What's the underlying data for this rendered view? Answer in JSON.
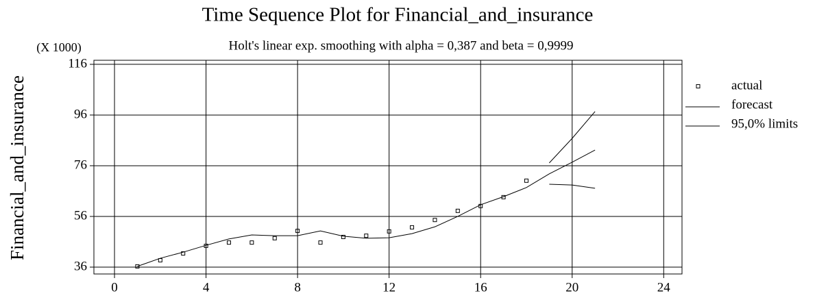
{
  "chart_data": {
    "type": "line",
    "title": "Time Sequence Plot for Financial_and_insurance",
    "subtitle": "Holt's linear exp. smoothing with alpha = 0,387 and beta = 0,9999",
    "y_label": "Financial_and_insurance",
    "y_multiplier": "(X 1000)",
    "x": [
      1,
      2,
      3,
      4,
      5,
      6,
      7,
      8,
      9,
      10,
      11,
      12,
      13,
      14,
      15,
      16,
      17,
      18,
      19,
      20,
      21
    ],
    "series": [
      {
        "name": "actual",
        "color": "#000000",
        "marker": "square",
        "values": [
          36.3,
          38.7,
          41.4,
          44.4,
          45.7,
          45.7,
          47.4,
          50.3,
          45.7,
          47.9,
          48.4,
          50.1,
          51.7,
          54.6,
          58.2,
          60.1,
          63.6,
          70.1,
          null,
          null,
          null
        ]
      },
      {
        "name": "forecast",
        "color": "#000000",
        "values": [
          36.3,
          39.5,
          41.9,
          44.6,
          47.1,
          48.7,
          48.4,
          48.4,
          50.3,
          48.2,
          47.4,
          47.6,
          49.2,
          51.9,
          56.0,
          60.6,
          63.8,
          67.4,
          72.8,
          77.4,
          82.2
        ]
      },
      {
        "name": "95,0% limits",
        "color": "#000000",
        "values": [
          null,
          null,
          null,
          null,
          null,
          null,
          null,
          null,
          null,
          null,
          null,
          null,
          null,
          null,
          null,
          null,
          null,
          null,
          77.1,
          86.8,
          97.4
        ],
        "lower": [
          null,
          null,
          null,
          null,
          null,
          null,
          null,
          null,
          null,
          null,
          null,
          null,
          null,
          null,
          null,
          null,
          null,
          null,
          68.7,
          68.4,
          67.1
        ]
      }
    ],
    "xlim": [
      -0.9,
      24.8
    ],
    "xticks": [
      0,
      4,
      8,
      12,
      16,
      20,
      24
    ],
    "ylim": [
      33.3,
      117.6
    ],
    "yticks": [
      36,
      56,
      76,
      96,
      116
    ],
    "grid": true,
    "legend": "right"
  }
}
